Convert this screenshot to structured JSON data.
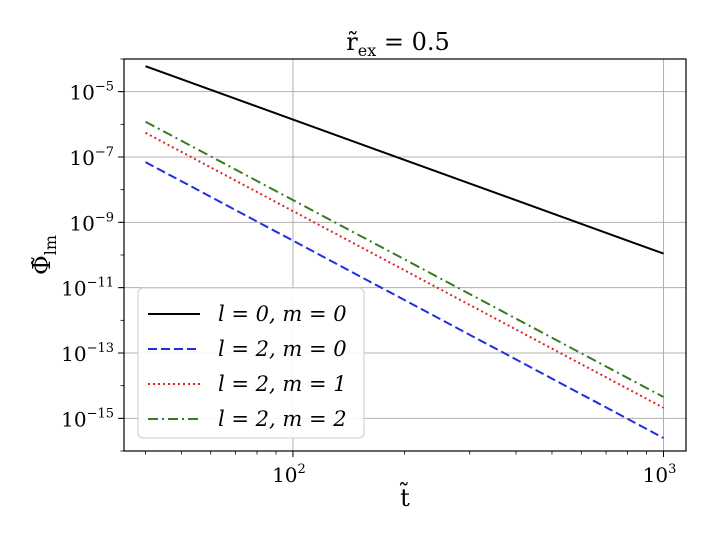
{
  "chart_data": {
    "type": "line",
    "title": "r̃ex = 0.5",
    "title_parts": {
      "symbol": "r̃",
      "subscript": "ex",
      "rest": " = 0.5"
    },
    "xlabel": "t̃",
    "ylabel_parts": {
      "symbol": "Φ̃",
      "subscript": "lm"
    },
    "x_scale": "log",
    "y_scale": "log",
    "xlim": [
      35,
      1150
    ],
    "ylim": [
      1e-16,
      0.0001
    ],
    "grid": true,
    "legend_position": "lower-left",
    "x_ticks": [
      {
        "value": 100,
        "base": "10",
        "exp": "2"
      },
      {
        "value": 1000,
        "base": "10",
        "exp": "3"
      }
    ],
    "y_ticks": [
      {
        "value": 1e-05,
        "base": "10",
        "exp": "−5"
      },
      {
        "value": 1e-07,
        "base": "10",
        "exp": "−7"
      },
      {
        "value": 1e-09,
        "base": "10",
        "exp": "−9"
      },
      {
        "value": 1e-11,
        "base": "10",
        "exp": "−11"
      },
      {
        "value": 1e-13,
        "base": "10",
        "exp": "−13"
      },
      {
        "value": 1e-15,
        "base": "10",
        "exp": "−15"
      }
    ],
    "series": [
      {
        "name": "l = 0,  m = 0",
        "color": "#000000",
        "dash": "solid",
        "x": [
          40,
          1000
        ],
        "y": [
          6e-05,
          1.1e-10
        ]
      },
      {
        "name": "l = 2,  m = 0",
        "color": "#1f2fe0",
        "dash": "dashed",
        "x": [
          40,
          1000
        ],
        "y": [
          7e-08,
          2.5e-16
        ]
      },
      {
        "name": "l = 2,  m = 1",
        "color": "#e0231f",
        "dash": "dotted",
        "x": [
          40,
          1000
        ],
        "y": [
          5.5e-07,
          2.1e-15
        ]
      },
      {
        "name": "l = 2,  m = 2",
        "color": "#3a7a1e",
        "dash": "dashdot",
        "x": [
          40,
          1000
        ],
        "y": [
          1.2e-06,
          4.5e-15
        ]
      }
    ]
  }
}
